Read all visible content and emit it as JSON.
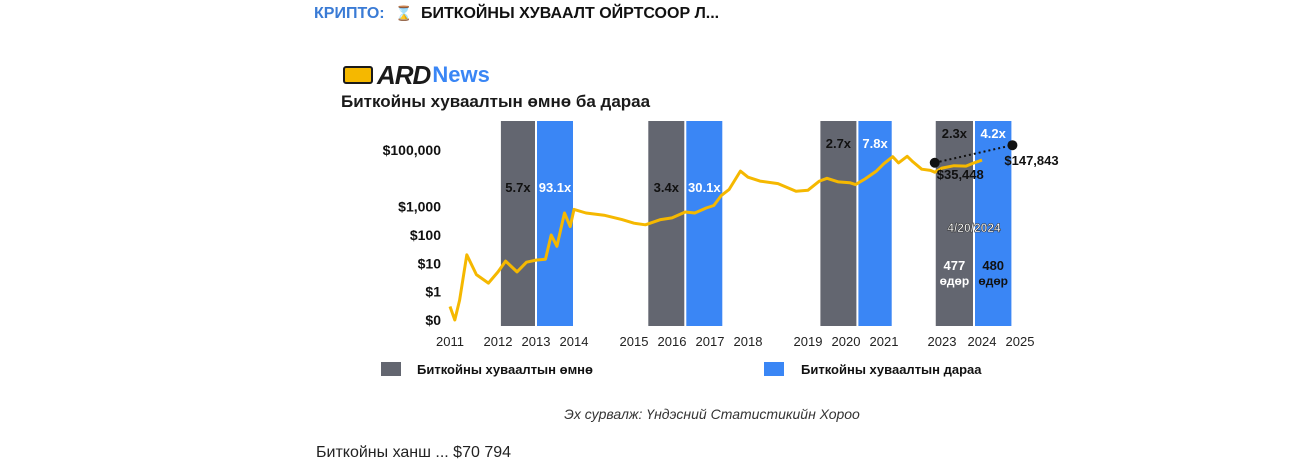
{
  "headline": {
    "category": "КРИПТО:",
    "icon": "hourglass-icon",
    "title": "БИТКОЙНЫ ХУВААЛТ ОЙРТСООР Л..."
  },
  "logo": {
    "brand": "ARD",
    "news": "News"
  },
  "chart_title": "Биткойны хуваалтын өмнө ба дараа",
  "source": "Эх сурвалж: Үндэсний Статистикийн Хороо",
  "truncated_text": "Биткойны ханш ... $70 794",
  "colors": {
    "before": "#636670",
    "after": "#3a86f5",
    "price": "#f5b800",
    "dark": "#111111"
  },
  "chart_data": {
    "type": "line",
    "y_scale": "log",
    "y_ticks": [
      "$100,000",
      "$1,000",
      "$100",
      "$10",
      "$1",
      "$0"
    ],
    "y_tick_values": [
      100000,
      1000,
      100,
      10,
      1,
      0.1
    ],
    "x_ticks": [
      "2011",
      "2012",
      "2013",
      "2014",
      "2015",
      "2016",
      "2017",
      "2018",
      "2019",
      "2020",
      "2021",
      "2023",
      "2024",
      "2025"
    ],
    "x_tick_values": [
      2011,
      2012,
      2013,
      2014,
      2015,
      2016,
      2017,
      2018,
      2019,
      2020,
      2021,
      2023,
      2024,
      2025
    ],
    "legend": [
      {
        "label": "Биткойны хуваалтын өмнө",
        "series": "before"
      },
      {
        "label": "Биткойны хуваалтын дараа",
        "series": "after"
      }
    ],
    "halving_periods": [
      {
        "before": {
          "start": 2012.05,
          "end": 2013.0,
          "label": "5.7x"
        },
        "after": {
          "start": 2013.0,
          "end": 2014.0,
          "label": "93.1x"
        }
      },
      {
        "before": {
          "start": 2015.35,
          "end": 2016.35,
          "label": "3.4x"
        },
        "after": {
          "start": 2016.35,
          "end": 2017.35,
          "label": "30.1x"
        }
      },
      {
        "before": {
          "start": 2019.3,
          "end": 2020.3,
          "label": "2.7x"
        },
        "after": {
          "start": 2020.3,
          "end": 2021.3,
          "label": "7.8x"
        }
      },
      {
        "before": {
          "start": 2022.75,
          "end": 2023.8,
          "label": "2.3x"
        },
        "after": {
          "start": 2023.8,
          "end": 2024.8,
          "label": "4.2x"
        }
      }
    ],
    "annotations": {
      "date": "4/20/2024",
      "days_before": "477",
      "days_after": "480",
      "days_unit": "өдөр",
      "start_price": "$35,448",
      "end_price": "$147,843"
    },
    "projection": {
      "x": [
        2022.75,
        2024.8
      ],
      "y": [
        35448,
        147843
      ]
    },
    "price": {
      "x": [
        2011.0,
        2011.1,
        2011.2,
        2011.35,
        2011.55,
        2011.8,
        2012.0,
        2012.2,
        2012.5,
        2012.75,
        2013.0,
        2013.25,
        2013.4,
        2013.55,
        2013.75,
        2013.9,
        2014.0,
        2014.2,
        2014.5,
        2014.8,
        2015.0,
        2015.3,
        2015.7,
        2016.0,
        2016.35,
        2016.6,
        2016.9,
        2017.1,
        2017.3,
        2017.5,
        2017.8,
        2018.0,
        2018.2,
        2018.5,
        2018.8,
        2019.0,
        2019.3,
        2019.5,
        2019.8,
        2020.1,
        2020.25,
        2020.5,
        2020.8,
        2021.0,
        2021.3,
        2021.5,
        2021.8,
        2022.0,
        2022.3,
        2022.6,
        2022.75,
        2023.0,
        2023.3,
        2023.6,
        2023.8,
        2024.0
      ],
      "y": [
        0.3,
        0.1,
        0.5,
        20,
        4,
        2,
        5,
        12,
        5,
        11,
        13,
        14,
        100,
        40,
        600,
        200,
        800,
        600,
        500,
        350,
        260,
        230,
        350,
        400,
        650,
        600,
        900,
        1100,
        2500,
        4000,
        18000,
        11000,
        8000,
        6500,
        3500,
        3800,
        8000,
        10000,
        7500,
        7000,
        6000,
        9500,
        18000,
        33000,
        58000,
        35000,
        60000,
        38000,
        21000,
        19000,
        16500,
        23000,
        28000,
        27000,
        35000,
        44000
      ]
    }
  }
}
